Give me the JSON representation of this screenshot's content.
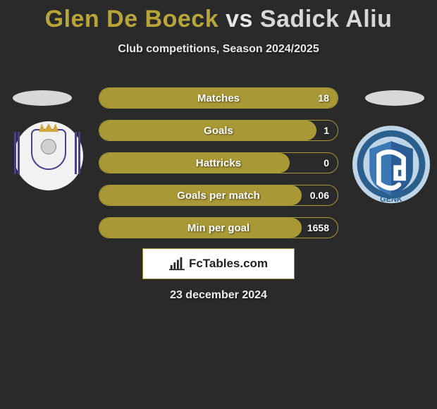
{
  "title": {
    "player1": "Glen De Boeck",
    "vs": "vs",
    "player2": "Sadick Aliu",
    "player1_color": "#b8a53a",
    "vs_color": "#e8e8e8",
    "player2_color": "#d8d8d8"
  },
  "subtitle": "Club competitions, Season 2024/2025",
  "background_color": "#2a2a2a",
  "bar_fill_color": "#a89836",
  "bar_track_color": "#2a2a2a",
  "stats": [
    {
      "label": "Matches",
      "value": "18",
      "fill_pct": 100
    },
    {
      "label": "Goals",
      "value": "1",
      "fill_pct": 91
    },
    {
      "label": "Hattricks",
      "value": "0",
      "fill_pct": 80
    },
    {
      "label": "Goals per match",
      "value": "0.06",
      "fill_pct": 85
    },
    {
      "label": "Min per goal",
      "value": "1658",
      "fill_pct": 85
    }
  ],
  "brand": "FcTables.com",
  "date": "23 december 2024",
  "logo_box": {
    "bg": "#ffffff",
    "border": "#9a8a30",
    "icon_color": "#222222",
    "text_color": "#222222"
  },
  "badges": {
    "left": {
      "bg": "#f2f2f2",
      "accent": "#4a3f8a",
      "gold": "#d4a83a"
    },
    "right": {
      "outer": "#bfd4e6",
      "band": "#2b5f8e",
      "shield_top": "#3a79b5",
      "shield_bot": "#2a5d93",
      "text": "GENK"
    }
  }
}
